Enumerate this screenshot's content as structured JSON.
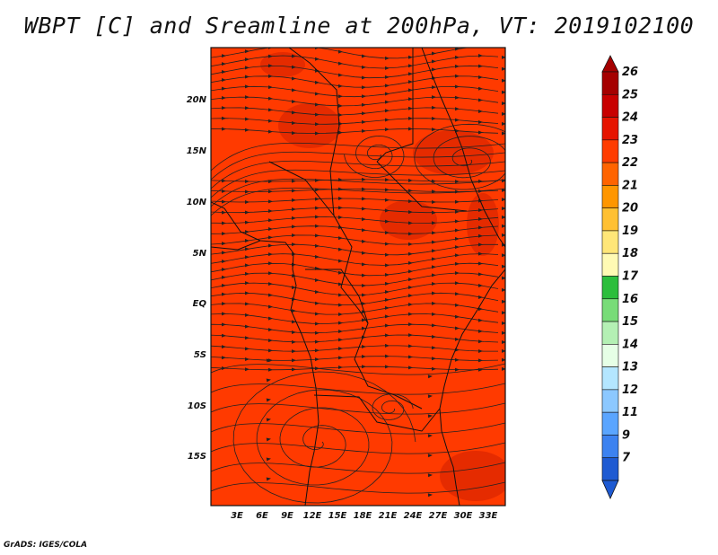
{
  "title": "WBPT [C] and Sreamline at 200hPa, VT: 2019102100",
  "credit": "GrADS: IGES/COLA",
  "map": {
    "fill_color": "#ff3a00",
    "warm_patch_color": "#e22a00",
    "lat_labels": [
      "20N",
      "15N",
      "10N",
      "5N",
      "EQ",
      "5S",
      "10S",
      "15S"
    ],
    "lon_labels": [
      "3E",
      "6E",
      "9E",
      "12E",
      "15E",
      "18E",
      "21E",
      "24E",
      "27E",
      "30E",
      "33E"
    ]
  },
  "colorbar": {
    "levels": [
      {
        "label": "26",
        "color": "#a50000"
      },
      {
        "label": "25",
        "color": "#c80000"
      },
      {
        "label": "24",
        "color": "#e61400"
      },
      {
        "label": "23",
        "color": "#ff3c00"
      },
      {
        "label": "22",
        "color": "#ff6400"
      },
      {
        "label": "21",
        "color": "#ff9600"
      },
      {
        "label": "20",
        "color": "#ffc032"
      },
      {
        "label": "19",
        "color": "#ffe678"
      },
      {
        "label": "18",
        "color": "#fffab4"
      },
      {
        "label": "17",
        "color": "#2cbe3c"
      },
      {
        "label": "16",
        "color": "#78dc78"
      },
      {
        "label": "15",
        "color": "#b4f0b4"
      },
      {
        "label": "14",
        "color": "#e6ffe6"
      },
      {
        "label": "13",
        "color": "#b4e6ff"
      },
      {
        "label": "12",
        "color": "#8cc8ff"
      },
      {
        "label": "11",
        "color": "#5aa5ff"
      },
      {
        "label": "9",
        "color": "#3c82f0"
      },
      {
        "label": "7",
        "color": "#1e5ad2"
      }
    ],
    "bottom_arrow_color": "#1e5ad2"
  }
}
